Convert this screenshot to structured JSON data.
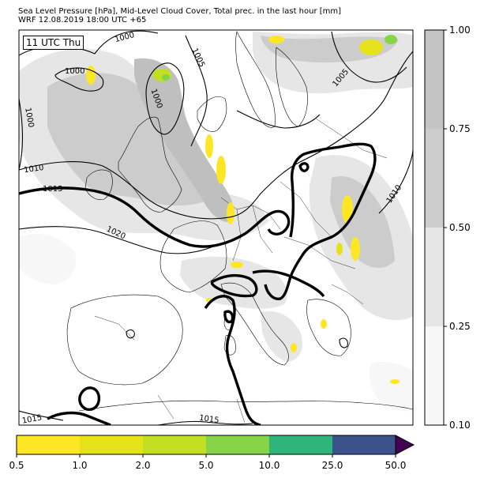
{
  "title": {
    "line1": "Sea Level Pressure [hPa], Mid-Level Cloud Cover, Total prec. in the last hour [mm]",
    "line2": "WRF 12.08.2019 18:00 UTC +65"
  },
  "time_label": "11 UTC Thu",
  "colors": {
    "cloud_bands": [
      "#f7f7f7",
      "#e6e6e6",
      "#cccccc"
    ],
    "precip": [
      "#fde725",
      "#e6e21a",
      "#c2df23",
      "#86d549",
      "#2fb47c",
      "#3b528b",
      "#440154"
    ],
    "isobar": "#000000"
  },
  "cloud_colorbar": {
    "levels": [
      0.1,
      0.25,
      0.5,
      0.75,
      1.0
    ],
    "tick_labels": [
      "0.10",
      "0.25",
      "0.50",
      "0.75",
      "1.00"
    ],
    "colors": [
      "#f7f7f7",
      "#e6e6e6",
      "#cccccc",
      "#c4c4c4"
    ]
  },
  "precip_colorbar": {
    "levels": [
      0.5,
      1.0,
      2.0,
      5.0,
      10.0,
      25.0,
      50.0
    ],
    "tick_labels": [
      "0.5",
      "1.0",
      "2.0",
      "5.0",
      "10.0",
      "25.0",
      "50.0"
    ],
    "colors": [
      "#fde725",
      "#e6e21a",
      "#c2df23",
      "#86d549",
      "#2fb47c",
      "#3b528b"
    ],
    "extend_color": "#440154"
  },
  "isobar_labels": [
    "1000",
    "1005",
    "1000",
    "1000",
    "1000",
    "1005",
    "1010",
    "1015",
    "1020",
    "1010",
    "1015",
    "1015"
  ]
}
